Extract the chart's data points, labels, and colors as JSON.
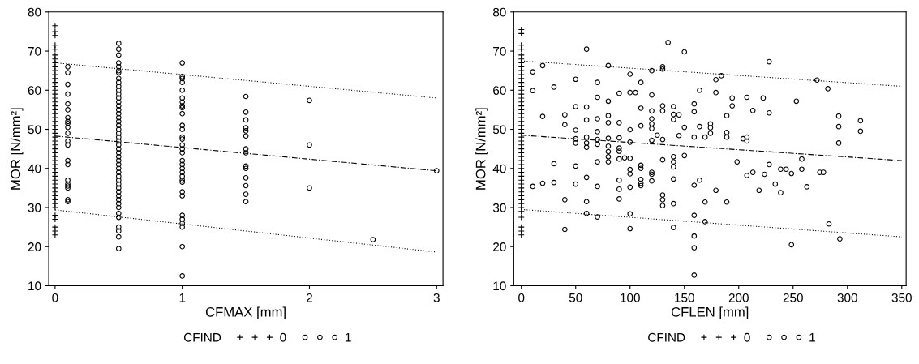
{
  "chart_data": [
    {
      "type": "scatter",
      "xlabel": "CFMAX [mm]",
      "ylabel": "MOR [N/mm²]",
      "legend_title": "CFIND",
      "legend": "bottom",
      "grid": false,
      "xlim": [
        -0.05,
        3.05
      ],
      "xticks": [
        0,
        1,
        2,
        3
      ],
      "ylim": [
        10,
        80
      ],
      "yticks": [
        10,
        20,
        30,
        40,
        50,
        60,
        70,
        80
      ],
      "series": [
        {
          "name": "0",
          "color": "#000000",
          "marker": "cross",
          "x": [
            0,
            0,
            0,
            0,
            0,
            0,
            0,
            0,
            0,
            0,
            0,
            0,
            0,
            0,
            0,
            0,
            0,
            0,
            0,
            0,
            0,
            0,
            0,
            0,
            0,
            0,
            0,
            0,
            0,
            0,
            0,
            0,
            0,
            0,
            0,
            0,
            0,
            0,
            0,
            0,
            0,
            0,
            0,
            0,
            0,
            0,
            0,
            0,
            0,
            0
          ],
          "values": [
            76.5,
            75,
            74,
            71.5,
            70.5,
            69,
            68,
            67,
            66,
            65,
            64,
            63,
            62,
            61,
            60,
            59,
            58,
            57,
            56,
            55,
            54,
            53,
            52,
            51,
            50,
            49,
            48,
            47,
            46,
            45,
            44,
            43,
            42,
            41,
            40,
            39,
            38,
            37,
            36,
            35,
            34,
            33,
            32,
            31,
            30,
            28,
            27,
            25,
            24,
            23
          ]
        },
        {
          "name": "1",
          "color": "#000000",
          "marker": "circle",
          "x": [
            0.1,
            0.1,
            0.1,
            0.1,
            0.1,
            0.1,
            0.1,
            0.1,
            0.1,
            0.1,
            0.1,
            0.1,
            0.1,
            0.1,
            0.1,
            0.1,
            0.1,
            0.1,
            0.1,
            0.1,
            0.1,
            0.5,
            0.5,
            0.5,
            0.5,
            0.5,
            0.5,
            0.5,
            0.5,
            0.5,
            0.5,
            0.5,
            0.5,
            0.5,
            0.5,
            0.5,
            0.5,
            0.5,
            0.5,
            0.5,
            0.5,
            0.5,
            0.5,
            0.5,
            0.5,
            0.5,
            0.5,
            0.5,
            0.5,
            0.5,
            0.5,
            0.5,
            0.5,
            0.5,
            0.5,
            0.5,
            0.5,
            0.5,
            0.5,
            0.5,
            0.5,
            0.5,
            0.5,
            0.5,
            0.5,
            0.5,
            0.5,
            0.5,
            1,
            1,
            1,
            1,
            1,
            1,
            1,
            1,
            1,
            1,
            1,
            1,
            1,
            1,
            1,
            1,
            1,
            1,
            1,
            1,
            1,
            1,
            1,
            1,
            1,
            1,
            1,
            1,
            1,
            1,
            1,
            1,
            1.5,
            1.5,
            1.5,
            1.5,
            1.5,
            1.5,
            1.5,
            1.5,
            1.5,
            1.5,
            1.5,
            1.5,
            1.5,
            1.5,
            2,
            2,
            2,
            2.5,
            3
          ],
          "values": [
            66,
            64.5,
            61.5,
            59,
            56.5,
            55,
            53,
            52,
            51.5,
            50.5,
            49,
            47,
            46,
            42,
            41,
            37,
            36,
            35.5,
            35,
            32,
            31.5,
            72,
            70.5,
            69,
            67,
            66,
            65,
            64.5,
            63,
            62,
            61,
            60,
            59,
            58,
            57,
            56,
            55,
            54,
            53,
            52,
            51,
            50,
            49,
            48,
            47,
            46,
            45,
            44,
            43,
            42,
            41,
            40,
            39,
            38,
            37,
            36,
            35,
            34,
            33,
            32,
            31,
            30,
            28.5,
            27.5,
            25,
            24,
            22.5,
            19.5,
            67,
            63.5,
            63,
            62,
            60,
            58,
            57,
            56,
            55.5,
            54,
            51,
            50,
            48,
            47.5,
            46,
            45,
            44,
            42,
            41,
            40,
            39,
            38,
            37,
            36.5,
            34,
            33,
            28,
            27,
            26,
            25,
            20,
            12.5,
            58.4,
            54.4,
            52.4,
            50.4,
            49.6,
            48.3,
            45,
            44,
            40.6,
            40,
            37.6,
            35.6,
            33.4,
            31.5,
            57.4,
            46,
            35,
            21.8,
            39.4
          ]
        },
        {
          "type": "line",
          "color": "#000000",
          "line_style": "dotted",
          "x": [
            0,
            3
          ],
          "values": [
            67,
            58
          ]
        },
        {
          "type": "line",
          "color": "#000000",
          "line_style": "dashed",
          "x": [
            0,
            3
          ],
          "values": [
            48.3,
            39.4
          ]
        },
        {
          "type": "line",
          "color": "#000000",
          "line_style": "dotted",
          "x": [
            0,
            3
          ],
          "values": [
            29.4,
            18.6
          ]
        }
      ]
    },
    {
      "type": "scatter",
      "xlabel": "CFLEN [mm]",
      "ylabel": "MOR [N/mm²]",
      "legend_title": "CFIND",
      "legend": "bottom",
      "grid": false,
      "xlim": [
        -7,
        354
      ],
      "xticks": [
        0,
        50,
        100,
        150,
        200,
        250,
        300,
        350
      ],
      "ylim": [
        10,
        80
      ],
      "yticks": [
        10,
        20,
        30,
        40,
        50,
        60,
        70,
        80
      ],
      "series": [
        {
          "name": "0",
          "color": "#000000",
          "marker": "cross",
          "x": [
            0,
            0,
            0,
            0,
            0,
            0,
            0,
            0,
            0,
            0,
            0,
            0,
            0,
            0,
            0,
            0,
            0,
            0,
            0,
            0,
            0,
            0,
            0,
            0,
            0,
            0,
            0,
            0,
            0,
            0,
            0,
            0,
            0,
            0,
            0,
            0,
            0,
            0,
            0,
            0,
            0,
            0,
            0,
            0,
            0,
            0,
            0,
            0,
            0
          ],
          "values": [
            75.5,
            74.5,
            71.5,
            70.5,
            69,
            68,
            67,
            66,
            65,
            64,
            63,
            62,
            61,
            60,
            59,
            58,
            57,
            56,
            55,
            54,
            53,
            52,
            51,
            50,
            49,
            48,
            47,
            46,
            45,
            44,
            43,
            42,
            41,
            40,
            39,
            38,
            37,
            36,
            35,
            34,
            33,
            32,
            31,
            30,
            29,
            27.5,
            25,
            24,
            23
          ]
        },
        {
          "name": "1",
          "color": "#000000",
          "marker": "circle",
          "x": [
            10.5,
            10.5,
            19.6,
            19.6,
            10.5,
            19.6,
            30,
            30,
            30,
            40,
            40,
            40,
            40,
            50,
            50,
            50,
            50,
            50,
            50,
            50,
            60,
            60,
            60,
            60,
            60,
            60,
            60,
            60,
            60,
            70,
            70,
            70,
            70,
            70,
            70,
            70,
            70,
            70,
            80,
            80,
            80,
            80,
            80,
            80,
            80,
            80,
            80,
            90,
            90,
            90,
            90,
            90,
            90,
            90,
            90,
            90,
            95,
            100,
            100,
            100,
            100,
            100,
            100,
            100,
            100,
            100,
            100,
            105,
            110,
            110,
            110,
            110,
            110,
            110,
            110,
            110,
            120,
            120,
            120,
            120,
            120,
            120,
            120,
            120,
            120,
            120,
            125,
            130,
            130,
            130,
            130,
            130,
            130,
            130,
            130,
            130,
            135,
            140,
            140,
            140,
            140,
            140,
            140,
            140,
            140,
            140,
            145,
            145,
            150,
            150,
            150,
            159,
            159,
            159,
            159,
            159,
            159,
            159,
            159,
            164,
            164,
            164,
            169,
            169,
            169,
            174,
            174,
            174,
            179,
            184,
            179,
            179,
            189,
            189,
            189,
            189,
            194,
            194,
            198.5,
            204,
            207.5,
            207.5,
            207.5,
            207.5,
            213,
            213,
            218.7,
            222.5,
            223.7,
            228,
            228,
            228,
            233.6,
            238.6,
            238.6,
            243.6,
            248.5,
            248.5,
            253,
            258,
            258,
            262.7,
            272,
            274.6,
            278,
            282,
            283,
            292,
            292,
            292,
            293,
            312,
            312
          ],
          "values": [
            64.7,
            59.9,
            66.3,
            53.3,
            35.4,
            36.2,
            60.8,
            41.2,
            36.4,
            53.7,
            51.2,
            32,
            24.4,
            62.8,
            55.8,
            49.8,
            47.6,
            46.5,
            40.6,
            36,
            70.5,
            55.7,
            52.4,
            48,
            46.5,
            45.4,
            37.7,
            31.5,
            28.5,
            62,
            58.2,
            52.7,
            49.4,
            47.4,
            46.2,
            41.7,
            35.4,
            27.6,
            66.3,
            57.2,
            53.5,
            51.7,
            47.7,
            45.7,
            44.3,
            43,
            41.7,
            59.2,
            51.7,
            47.8,
            45.2,
            44.4,
            42.4,
            37,
            34.7,
            32.2,
            42.7,
            64.1,
            59.4,
            49.9,
            46.7,
            42.6,
            39.7,
            38.6,
            35.2,
            28.4,
            24.6,
            59.4,
            62,
            55.4,
            50.9,
            40.8,
            40,
            37.2,
            36.2,
            35.6,
            65,
            58.8,
            54.7,
            52.7,
            51.4,
            50.2,
            47.2,
            39,
            38.5,
            36.8,
            48.5,
            66,
            65.4,
            56,
            54.7,
            47.4,
            42.2,
            33.2,
            32,
            30.5,
            72.2,
            55.8,
            53.8,
            52.5,
            43,
            41.7,
            40.4,
            37.3,
            31,
            24.9,
            53.7,
            48.4,
            69.8,
            50.5,
            43.3,
            56.5,
            54.5,
            48,
            35.7,
            28,
            22.7,
            19.7,
            12.7,
            60,
            50.7,
            37,
            31.4,
            26.4,
            48,
            51.4,
            50.4,
            49,
            62.7,
            63.7,
            59.4,
            34.4,
            53.5,
            49.2,
            48,
            31.4,
            58,
            56,
            41.7,
            47.6,
            48,
            47,
            58.2,
            38.2,
            39,
            54.8,
            34.4,
            58,
            38.5,
            54.2,
            41,
            67.3,
            36,
            39.8,
            33.8,
            39.8,
            38.7,
            20.5,
            57.2,
            42.4,
            39.8,
            35.3,
            62.6,
            39,
            39,
            60.4,
            25.8,
            53.4,
            50.7,
            46.5,
            22,
            52.2,
            49.5
          ]
        },
        {
          "type": "line",
          "color": "#000000",
          "line_style": "dotted",
          "x": [
            0,
            350
          ],
          "values": [
            67.5,
            61
          ]
        },
        {
          "type": "line",
          "color": "#000000",
          "line_style": "dashed",
          "x": [
            0,
            350
          ],
          "values": [
            48.5,
            42
          ]
        },
        {
          "type": "line",
          "color": "#000000",
          "line_style": "dotted",
          "x": [
            0,
            350
          ],
          "values": [
            29.5,
            22.5
          ]
        }
      ]
    }
  ]
}
